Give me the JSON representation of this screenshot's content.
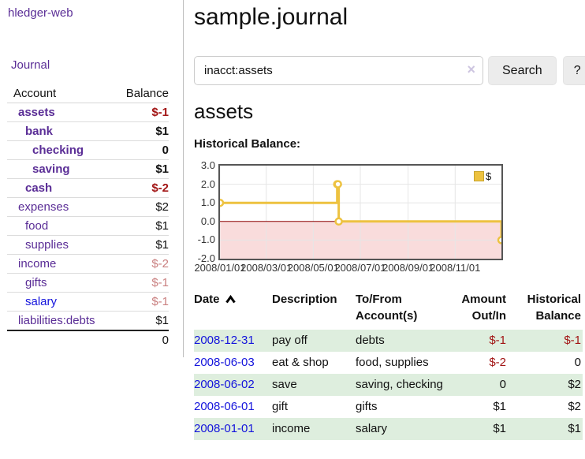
{
  "app": {
    "title": "hledger-web"
  },
  "nav": {
    "journal": "Journal"
  },
  "sidebar": {
    "columns": {
      "account": "Account",
      "balance": "Balance"
    },
    "accounts": [
      {
        "name": "assets",
        "balance": "$-1"
      },
      {
        "name": "bank",
        "balance": "$1"
      },
      {
        "name": "checking",
        "balance": "0"
      },
      {
        "name": "saving",
        "balance": "$1"
      },
      {
        "name": "cash",
        "balance": "$-2"
      },
      {
        "name": "expenses",
        "balance": "$2"
      },
      {
        "name": "food",
        "balance": "$1"
      },
      {
        "name": "supplies",
        "balance": "$1"
      },
      {
        "name": "income",
        "balance": "$-2"
      },
      {
        "name": "gifts",
        "balance": "$-1"
      },
      {
        "name": "salary",
        "balance": "$-1"
      },
      {
        "name": "liabilities:debts",
        "balance": "$1"
      }
    ],
    "total": "0"
  },
  "header": {
    "title": "sample.journal"
  },
  "search": {
    "value": "inacct:assets",
    "clear_icon": "×",
    "search_button": "Search",
    "help_button": "?"
  },
  "account_view": {
    "title": "assets",
    "chart_heading": "Historical Balance:"
  },
  "chart_data": {
    "type": "line",
    "step": true,
    "legend_position": "top-right",
    "series": [
      {
        "name": "$",
        "color": "#EDC240",
        "points": [
          [
            "2008-01-01",
            1
          ],
          [
            "2008-06-01",
            2
          ],
          [
            "2008-06-02",
            2
          ],
          [
            "2008-06-03",
            0
          ],
          [
            "2008-12-31",
            -1
          ]
        ]
      }
    ],
    "xlim": [
      "2008-01-01",
      "2008-12-31"
    ],
    "ylim": [
      -2,
      3
    ],
    "yticks": [
      {
        "label": "3.0",
        "v": 3
      },
      {
        "label": "2.0",
        "v": 2
      },
      {
        "label": "1.0",
        "v": 1
      },
      {
        "label": "0.0",
        "v": 0
      },
      {
        "label": "-1.0",
        "v": -1
      },
      {
        "label": "-2.0",
        "v": -2
      }
    ],
    "xticks": [
      {
        "label": "2008/01/01",
        "date": "2008-01-01"
      },
      {
        "label": "2008/03/01",
        "date": "2008-03-01"
      },
      {
        "label": "2008/05/01",
        "date": "2008-05-01"
      },
      {
        "label": "2008/07/01",
        "date": "2008-07-01"
      },
      {
        "label": "2008/09/01",
        "date": "2008-09-01"
      },
      {
        "label": "2008/11/01",
        "date": "2008-11-01"
      }
    ],
    "negative_region_fill": "#f9dcdc",
    "zero_line_color": "#8b0000",
    "grid_color": "#e6e6e6",
    "border_color": "#555555"
  },
  "register": {
    "sort_icon": "chevron-up",
    "columns": [
      "Date",
      "Description",
      "To/From Account(s)",
      "Amount Out/In",
      "Historical Balance"
    ],
    "rows": [
      {
        "date": "2008-12-31",
        "description": "pay off",
        "accounts": "debts",
        "amount": "$-1",
        "balance": "$-1"
      },
      {
        "date": "2008-06-03",
        "description": "eat & shop",
        "accounts": "food, supplies",
        "amount": "$-2",
        "balance": "0"
      },
      {
        "date": "2008-06-02",
        "description": "save",
        "accounts": "saving, checking",
        "amount": "0",
        "balance": "$2"
      },
      {
        "date": "2008-06-01",
        "description": "gift",
        "accounts": "gifts",
        "amount": "$1",
        "balance": "$2"
      },
      {
        "date": "2008-01-01",
        "description": "income",
        "accounts": "salary",
        "amount": "$1",
        "balance": "$1"
      }
    ]
  },
  "colors": {
    "link_purple": "#5a2d96",
    "link_blue": "#1414dc",
    "negative_strong": "#a21515",
    "negative_muted": "#c97f7f",
    "row_stripe": "#deeede"
  }
}
